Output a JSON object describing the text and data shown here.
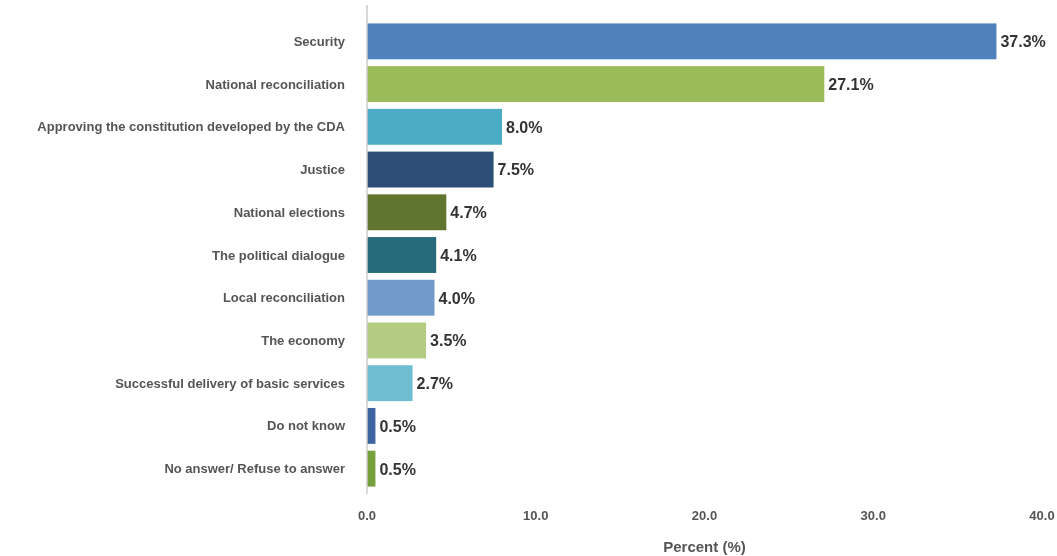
{
  "chart_data": {
    "type": "bar",
    "orientation": "horizontal",
    "xlabel": "Percent (%)",
    "categories": [
      "Security",
      "National reconciliation",
      "Approving the constitution developed by the CDA",
      "Justice",
      "National elections",
      "The political dialogue",
      "Local reconciliation",
      "The economy",
      "Successful delivery of basic services",
      "Do not know",
      "No answer/ Refuse to answer"
    ],
    "values": [
      37.3,
      27.1,
      8.0,
      7.5,
      4.7,
      4.1,
      4.0,
      3.5,
      2.7,
      0.5,
      0.5
    ],
    "value_labels": [
      "37.3%",
      "27.1%",
      "8.0%",
      "7.5%",
      "4.7%",
      "4.1%",
      "4.0%",
      "3.5%",
      "2.7%",
      "0.5%",
      "0.5%"
    ],
    "colors": [
      "#4f81bd",
      "#9bbb59",
      "#4bacc6",
      "#2c4d75",
      "#5f7530",
      "#276a7c",
      "#729aca",
      "#b3cc82",
      "#6fbdd1",
      "#3c64a0",
      "#77a03c"
    ],
    "xlim": [
      0,
      40
    ],
    "xticks": [
      {
        "value": 0,
        "label": "0.0"
      },
      {
        "value": 10,
        "label": "10.0"
      },
      {
        "value": 20,
        "label": "20.0"
      },
      {
        "value": 30,
        "label": "30.0"
      },
      {
        "value": 40,
        "label": "40.0"
      }
    ],
    "grid": false
  }
}
